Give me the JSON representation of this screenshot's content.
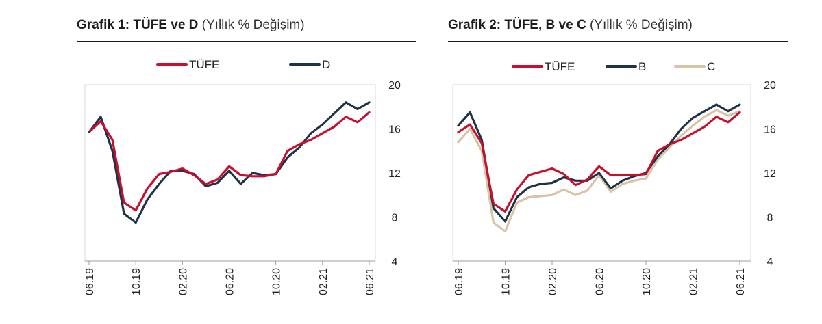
{
  "chart_data": [
    {
      "type": "line",
      "title_bold": "Grafik 1: TÜFE ve D",
      "title_light": "(Yıllık % Değişim)",
      "x_tick_labels": [
        "06.19",
        "10.19",
        "02.20",
        "06.20",
        "10.20",
        "02.21",
        "06.21"
      ],
      "y_ticks": [
        4,
        8,
        12,
        16,
        20
      ],
      "ylim": [
        4,
        20
      ],
      "y_axis_position": "right",
      "legend_position": "top",
      "n_points": 25,
      "series": [
        {
          "name": "TÜFE",
          "color": "#c8102e",
          "values": [
            15.7,
            16.7,
            15.0,
            9.3,
            8.6,
            10.6,
            11.9,
            12.1,
            12.4,
            11.8,
            11.0,
            11.4,
            12.6,
            11.8,
            11.7,
            11.7,
            11.9,
            14.0,
            14.6,
            15.0,
            15.6,
            16.2,
            17.1,
            16.6,
            17.5
          ]
        },
        {
          "name": "D",
          "color": "#1e3348",
          "values": [
            15.7,
            17.1,
            14.0,
            8.3,
            7.5,
            9.6,
            11.0,
            12.2,
            12.2,
            11.9,
            10.8,
            11.1,
            12.2,
            11.0,
            12.0,
            11.8,
            11.9,
            13.4,
            14.3,
            15.6,
            16.4,
            17.4,
            18.4,
            17.8,
            18.4
          ]
        }
      ]
    },
    {
      "type": "line",
      "title_bold": "Grafik 2: TÜFE, B ve C",
      "title_light": "(Yıllık % Değişim)",
      "x_tick_labels": [
        "06.19",
        "10.19",
        "02.20",
        "06.20",
        "10.20",
        "02.21",
        "06.21"
      ],
      "y_ticks": [
        4,
        8,
        12,
        16,
        20
      ],
      "ylim": [
        4,
        20
      ],
      "y_axis_position": "right",
      "legend_position": "top",
      "n_points": 25,
      "series": [
        {
          "name": "TÜFE",
          "color": "#c8102e",
          "values": [
            15.7,
            16.4,
            14.7,
            9.2,
            8.5,
            10.5,
            11.8,
            12.1,
            12.4,
            11.9,
            10.9,
            11.4,
            12.6,
            11.8,
            11.8,
            11.8,
            11.9,
            14.0,
            14.6,
            15.0,
            15.6,
            16.2,
            17.1,
            16.6,
            17.5
          ]
        },
        {
          "name": "B",
          "color": "#1e3348",
          "values": [
            16.3,
            17.5,
            15.0,
            8.8,
            7.6,
            9.8,
            10.7,
            11.0,
            11.1,
            11.6,
            11.3,
            11.3,
            12.0,
            10.6,
            11.3,
            11.7,
            12.0,
            13.5,
            14.6,
            16.0,
            17.0,
            17.6,
            18.2,
            17.6,
            18.2
          ]
        },
        {
          "name": "C",
          "color": "#d8c3a5",
          "values": [
            14.8,
            16.0,
            14.0,
            7.5,
            6.7,
            9.3,
            9.8,
            9.9,
            10.0,
            10.5,
            10.0,
            10.4,
            11.8,
            10.3,
            11.0,
            11.3,
            11.5,
            13.2,
            14.3,
            15.4,
            16.3,
            17.1,
            17.7,
            17.2,
            17.6
          ]
        }
      ]
    }
  ]
}
